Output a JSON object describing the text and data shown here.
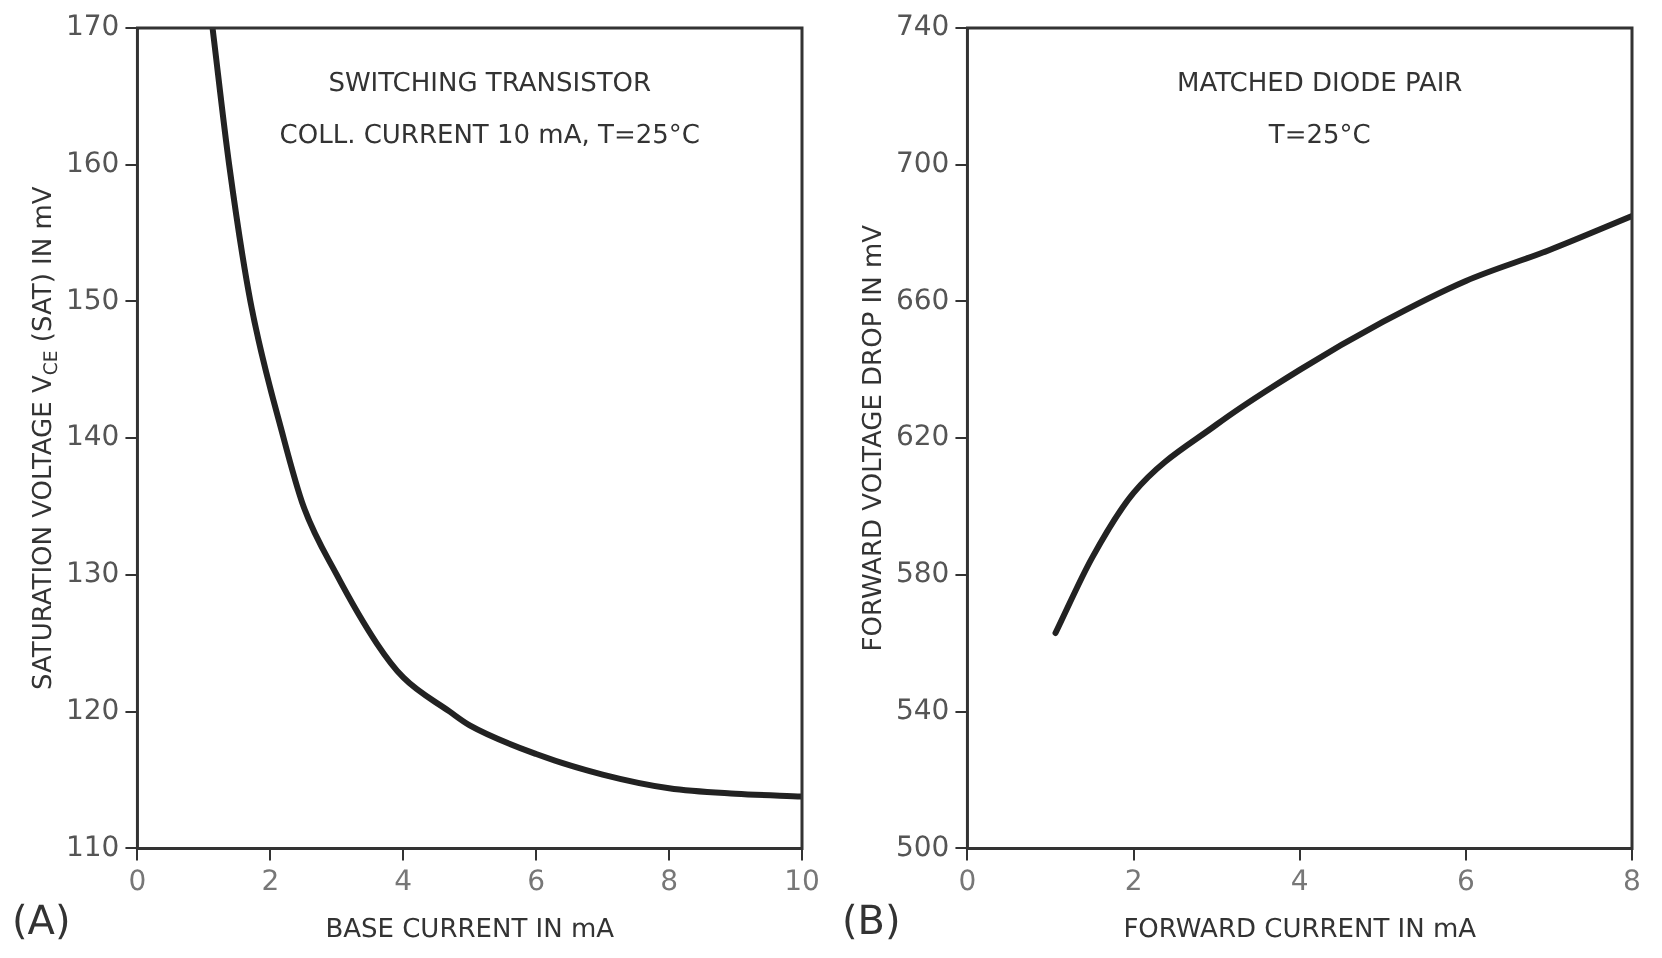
{
  "chart_data": [
    {
      "type": "line",
      "title": "(A)",
      "xlabel": "BASE CURRENT IN mA",
      "ylabel": "SATURATION VOLTAGE V$_{CE}$ (SAT) IN mV",
      "annotations": [
        "SWITCHING TRANSISTOR",
        "COLL. CURRENT 10 mA, T=25°C"
      ],
      "series": [
        {
          "color": "#222222",
          "x": [
            1.13,
            1.38,
            1.7,
            2.2,
            2.5,
            3,
            3.6,
            4,
            4.7,
            5,
            6,
            7,
            8,
            9,
            10
          ],
          "values": [
            170,
            160,
            150,
            140,
            135,
            130,
            125,
            122.5,
            120,
            119,
            116.9,
            115.4,
            114.4,
            114,
            113.8
          ]
        }
      ],
      "xlim": [
        0,
        10
      ],
      "xticks": [
        0,
        2,
        4,
        6,
        8,
        10
      ],
      "ylim": [
        110,
        170
      ],
      "yticks": [
        110,
        120,
        130,
        140,
        150,
        160,
        170
      ],
      "grid": false,
      "legend": false,
      "marker": "none",
      "line_style": "solid"
    },
    {
      "type": "line",
      "title": "(B)",
      "xlabel": "FORWARD CURRENT IN mA",
      "ylabel": "FORWARD VOLTAGE DROP IN mV",
      "annotations": [
        "MATCHED DIODE PAIR",
        "T=25°C"
      ],
      "series": [
        {
          "color": "#222222",
          "x": [
            1.06,
            1.5,
            2,
            3,
            4,
            5,
            6,
            7,
            8
          ],
          "values": [
            563,
            585,
            604,
            624,
            640,
            654,
            666,
            675,
            685
          ]
        }
      ],
      "xlim": [
        0,
        8
      ],
      "xticks": [
        0,
        2,
        4,
        6,
        8
      ],
      "ylim": [
        500,
        740
      ],
      "yticks": [
        500,
        540,
        580,
        620,
        660,
        700,
        740
      ],
      "grid": false,
      "legend": false,
      "marker": "none",
      "line_style": "solid"
    }
  ]
}
